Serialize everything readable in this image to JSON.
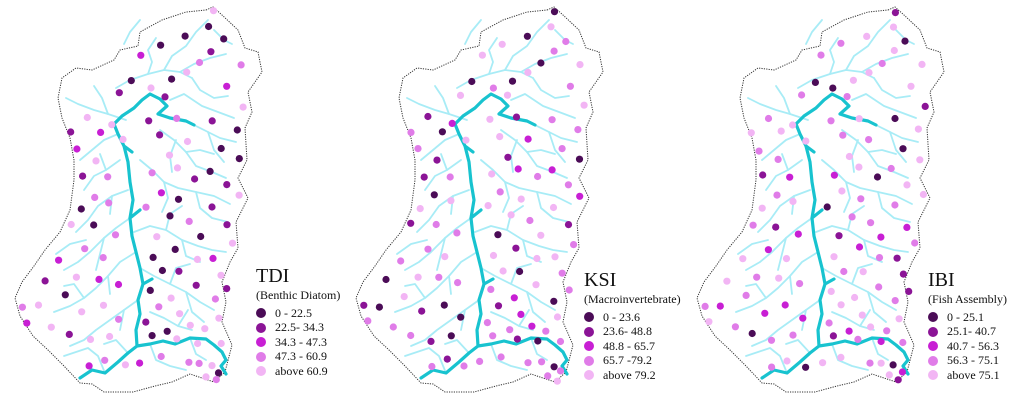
{
  "colors": {
    "background": "#ffffff",
    "boundary": "#333333",
    "tributary": "#a8ecf6",
    "main_river": "#18c3cf"
  },
  "panels": [
    {
      "title": "TDI",
      "subtitle": "(Benthic Diatom)",
      "legend": [
        {
          "label": "0 - 22.5",
          "color": "#4b0c57"
        },
        {
          "label": "22.5- 34.3",
          "color": "#8b1496"
        },
        {
          "label": "34.3 - 47.3",
          "color": "#c81fd4"
        },
        {
          "label": "47.3 - 60.9",
          "color": "#e07ce8"
        },
        {
          "label": "above 60.9",
          "color": "#f2b5f4"
        }
      ]
    },
    {
      "title": "KSI",
      "subtitle": "(Macroinvertebrate)",
      "legend": [
        {
          "label": "0 - 23.6",
          "color": "#4b0c57"
        },
        {
          "label": "23.6- 48.8",
          "color": "#8b1496"
        },
        {
          "label": "48.8 - 65.7",
          "color": "#c81fd4"
        },
        {
          "label": "65.7 -79.2",
          "color": "#e07ce8"
        },
        {
          "label": "above 79.2",
          "color": "#f2b5f4"
        }
      ]
    },
    {
      "title": "IBI",
      "subtitle": "(Fish Assembly)",
      "legend": [
        {
          "label": "0 - 25.1",
          "color": "#4b0c57"
        },
        {
          "label": "25.1- 40.7",
          "color": "#8b1496"
        },
        {
          "label": "40.7 - 56.3",
          "color": "#c81fd4"
        },
        {
          "label": "56.3 - 75.1",
          "color": "#e07ce8"
        },
        {
          "label": "above 75.1",
          "color": "#f2b5f4"
        }
      ]
    }
  ]
}
